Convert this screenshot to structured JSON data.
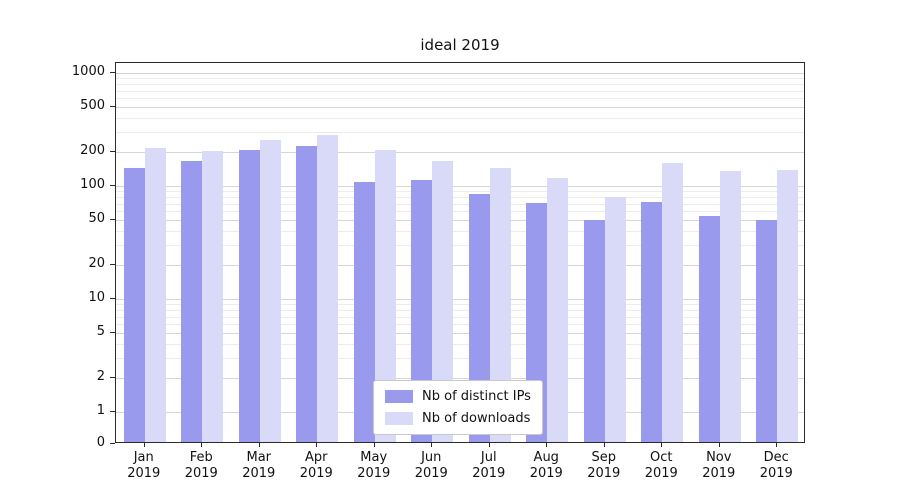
{
  "chart_data": {
    "type": "bar",
    "title": "ideal 2019",
    "categories": [
      "Jan",
      "Feb",
      "Mar",
      "Apr",
      "May",
      "Jun",
      "Jul",
      "Aug",
      "Sep",
      "Oct",
      "Nov",
      "Dec"
    ],
    "year_label": "2019",
    "series": [
      {
        "name": "Nb of distinct IPs",
        "color": "#9999ee",
        "values": [
          140,
          160,
          200,
          215,
          105,
          108,
          82,
          68,
          48,
          70,
          52,
          48
        ]
      },
      {
        "name": "Nb of downloads",
        "color": "#d9d9f8",
        "values": [
          210,
          195,
          245,
          270,
          200,
          160,
          140,
          112,
          76,
          152,
          130,
          132
        ]
      }
    ],
    "yticks": [
      0,
      1,
      2,
      5,
      10,
      20,
      50,
      100,
      200,
      500,
      1000
    ],
    "yscale": "symlog",
    "ylim": [
      0,
      1000
    ],
    "grid": true,
    "legend_position": "lower center"
  }
}
